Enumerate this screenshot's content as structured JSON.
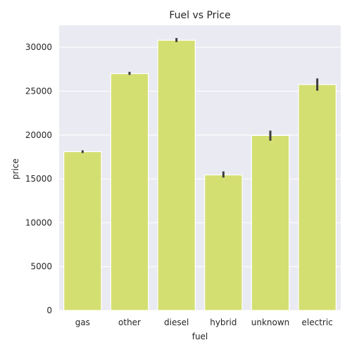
{
  "chart_data": {
    "type": "bar",
    "title": "Fuel vs Price",
    "xlabel": "fuel",
    "ylabel": "price",
    "categories": [
      "gas",
      "other",
      "diesel",
      "hybrid",
      "unknown",
      "electric"
    ],
    "values": [
      18100,
      27000,
      30800,
      15450,
      19950,
      25750
    ],
    "error_bars": [
      [
        17950,
        18250
      ],
      [
        26850,
        27200
      ],
      [
        30600,
        31050
      ],
      [
        15150,
        15850
      ],
      [
        19350,
        20500
      ],
      [
        25050,
        26450
      ]
    ],
    "ylim": [
      0,
      32500
    ],
    "yticks": [
      0,
      5000,
      10000,
      15000,
      20000,
      25000,
      30000
    ],
    "grid": true,
    "colors": {
      "bar": "#d4df72",
      "background": "#eaeaf2",
      "grid": "#ffffff",
      "error": "#3c3c3c"
    }
  }
}
